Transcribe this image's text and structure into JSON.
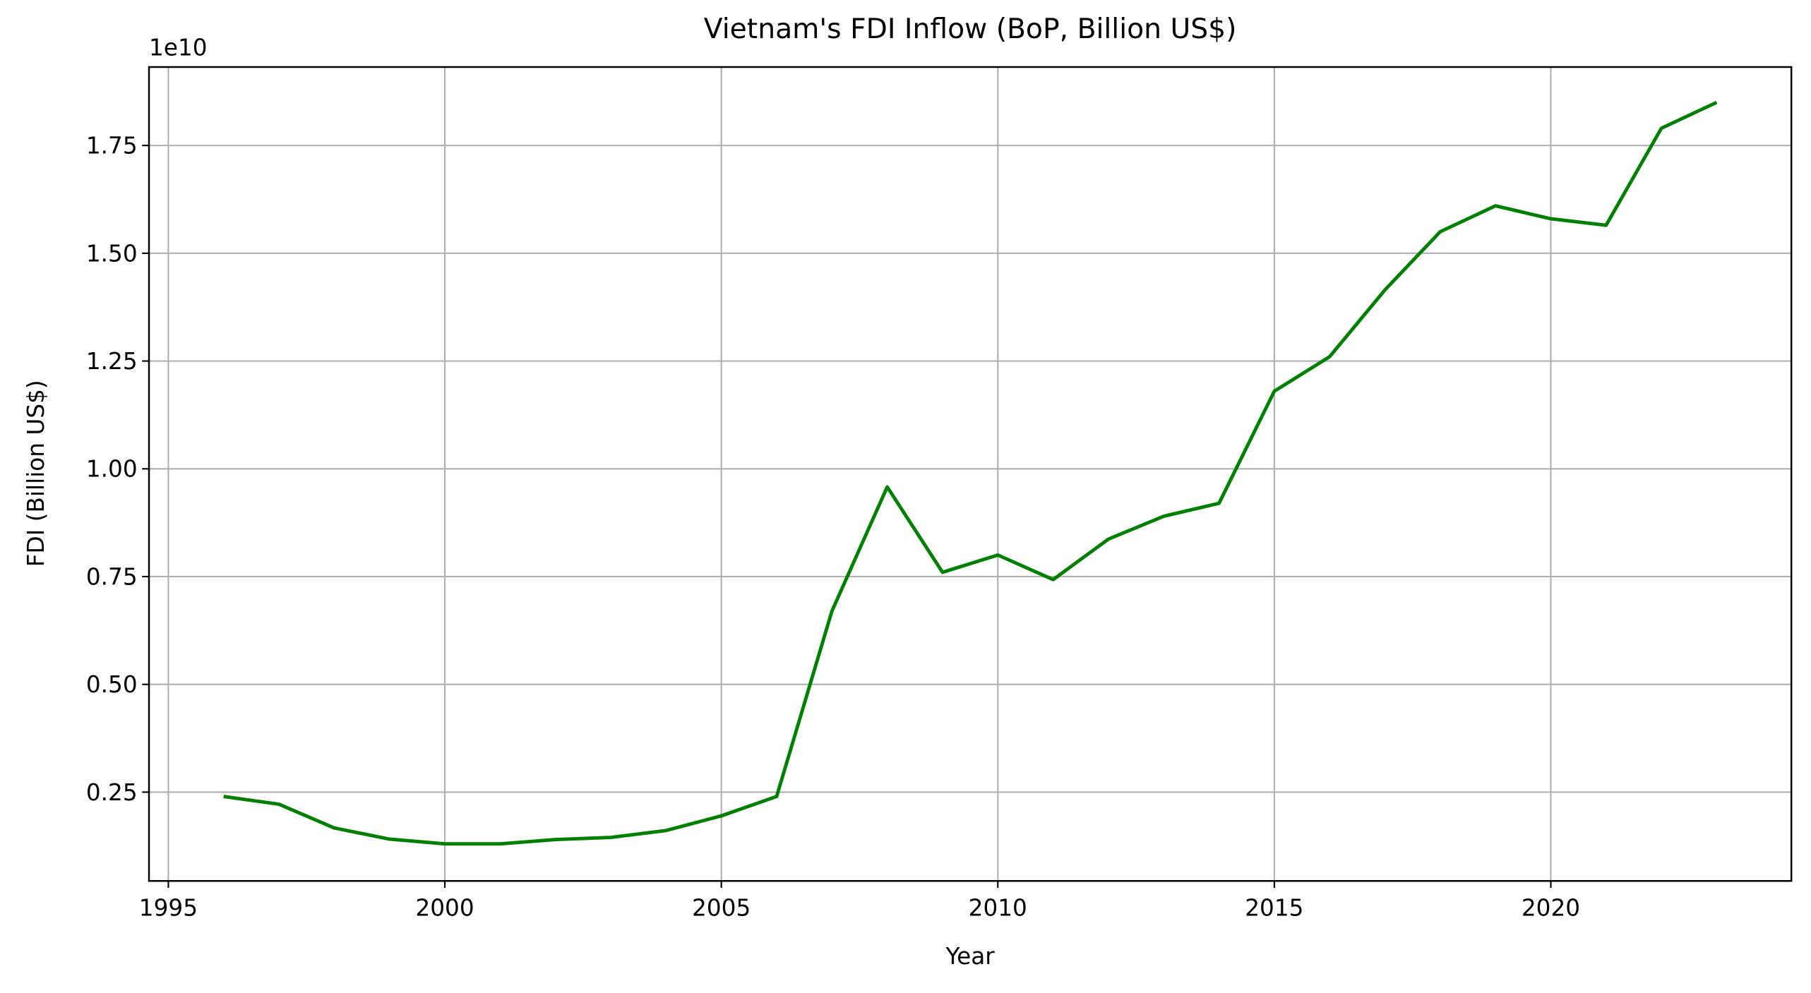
{
  "chart_data": {
    "type": "line",
    "title": "Vietnam's FDI Inflow (BoP, Billion US$)",
    "x_label": "Year",
    "y_label": "FDI (Billion US$)",
    "y_offset_label": "1e10",
    "x": [
      1996,
      1997,
      1998,
      1999,
      2000,
      2001,
      2002,
      2003,
      2004,
      2005,
      2006,
      2007,
      2008,
      2009,
      2010,
      2011,
      2012,
      2013,
      2014,
      2015,
      2016,
      2017,
      2018,
      2019,
      2020,
      2021,
      2022,
      2023
    ],
    "series": [
      {
        "name": "FDI",
        "color": "green",
        "values": [
          2400000000,
          2220000000,
          1670000000,
          1410000000,
          1300000000,
          1300000000,
          1400000000,
          1450000000,
          1610000000,
          1950000000,
          2400000000,
          6700000000,
          9580000000,
          7600000000,
          8000000000,
          7430000000,
          8370000000,
          8900000000,
          9200000000,
          11800000000,
          12600000000,
          14150000000,
          15500000000,
          16100000000,
          15800000000,
          15650000000,
          17900000000,
          18500000000
        ]
      }
    ],
    "xlim": [
      1994.65,
      2024.35
    ],
    "xticks": [
      1995,
      2000,
      2005,
      2010,
      2015,
      2020
    ],
    "ylim": [
      440000000,
      19320000000
    ],
    "yticks": [
      {
        "value": 2500000000,
        "label": "0.25"
      },
      {
        "value": 5000000000,
        "label": "0.50"
      },
      {
        "value": 7500000000,
        "label": "0.75"
      },
      {
        "value": 10000000000,
        "label": "1.00"
      },
      {
        "value": 12500000000,
        "label": "1.25"
      },
      {
        "value": 15000000000,
        "label": "1.50"
      },
      {
        "value": 17500000000,
        "label": "1.75"
      }
    ],
    "grid": true
  }
}
